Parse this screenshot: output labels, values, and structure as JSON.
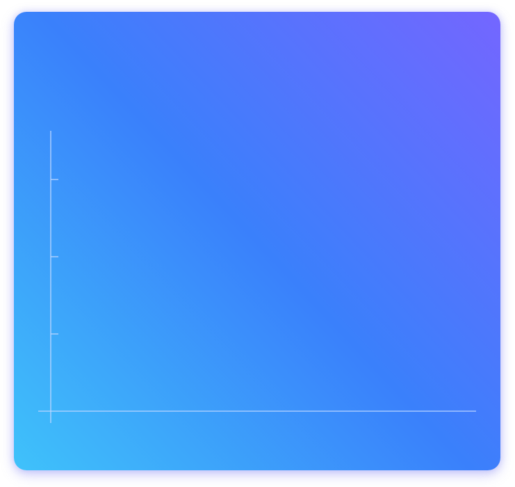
{
  "colors": {
    "gradient_top_right": "#7466ff",
    "gradient_middle": "#3a80fb",
    "gradient_bottom_left": "#3fc2fa",
    "axis_line": "#bcd6ff"
  },
  "chart_data": {
    "type": "line",
    "title": "",
    "xlabel": "",
    "ylabel": "",
    "y_tick_count": 3,
    "grid": false,
    "legend": "none",
    "series": []
  }
}
